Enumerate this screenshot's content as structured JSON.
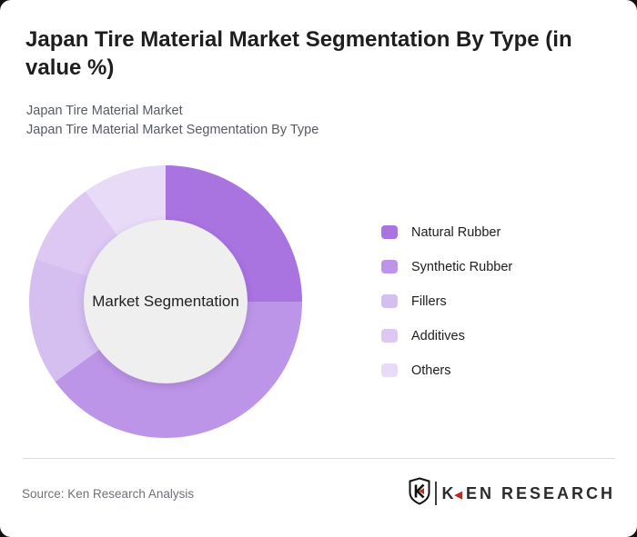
{
  "header": {
    "title": "Japan Tire Material Market Segmentation By Type (in value %)",
    "subtitles": [
      "Japan Tire Material Market",
      "Japan Tire Material Market Segmentation By Type"
    ]
  },
  "chart_data": {
    "type": "pie",
    "subtype": "donut",
    "title": "Japan Tire Material Market Segmentation By Type (in value %)",
    "center_label": "Market Segmentation",
    "categories": [
      "Natural Rubber",
      "Synthetic Rubber",
      "Fillers",
      "Additives",
      "Others"
    ],
    "values": [
      25,
      40,
      15,
      10,
      10
    ],
    "unit": "value %",
    "colors": [
      "#a973e0",
      "#bd95e8",
      "#d5bef0",
      "#dcc8f2",
      "#e8dbf7"
    ],
    "start_angle_deg": 0,
    "direction": "clockwise",
    "legend_position": "right",
    "hole_radius_pct": 60,
    "hole_color": "#efefef"
  },
  "footer": {
    "source": "Source: Ken Research Analysis",
    "logo": {
      "emblem": "ken-research-shield-k-icon",
      "text_k": "K",
      "text_rest": "EN RESEARCH",
      "accent_color": "#c0281e"
    }
  },
  "colors": {
    "page_bg": "#121212",
    "card_bg": "#ffffff",
    "title": "#1e1e1e",
    "subtitle": "#575c63",
    "divider": "#dcdcdc",
    "source_text": "#6d7278"
  }
}
